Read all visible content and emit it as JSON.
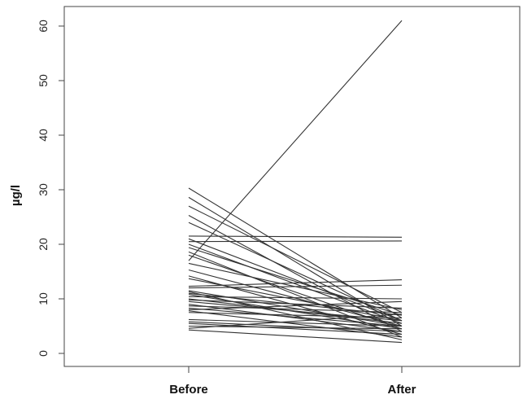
{
  "chart_data": {
    "type": "line",
    "title": "",
    "xlabel": "",
    "ylabel": "µg/l",
    "categories": [
      "Before",
      "After"
    ],
    "ylim": [
      0,
      62
    ],
    "yticks": [
      0,
      10,
      20,
      30,
      40,
      50,
      60
    ],
    "grid": false,
    "legend": "none",
    "line_color": "#333333",
    "series": [
      {
        "values": [
          17.0,
          61.0
        ]
      },
      {
        "values": [
          30.3,
          6.5
        ]
      },
      {
        "values": [
          28.6,
          5.0
        ]
      },
      {
        "values": [
          27.0,
          7.5
        ]
      },
      {
        "values": [
          25.3,
          4.0
        ]
      },
      {
        "values": [
          24.0,
          6.0
        ]
      },
      {
        "values": [
          21.5,
          21.3
        ]
      },
      {
        "values": [
          21.0,
          6.0
        ]
      },
      {
        "values": [
          20.5,
          20.6
        ]
      },
      {
        "values": [
          20.0,
          5.5
        ]
      },
      {
        "values": [
          19.4,
          7.0
        ]
      },
      {
        "values": [
          18.6,
          3.0
        ]
      },
      {
        "values": [
          18.0,
          4.5
        ]
      },
      {
        "values": [
          16.5,
          8.0
        ]
      },
      {
        "values": [
          15.3,
          5.0
        ]
      },
      {
        "values": [
          14.2,
          3.5
        ]
      },
      {
        "values": [
          13.7,
          6.0
        ]
      },
      {
        "values": [
          12.3,
          13.5
        ]
      },
      {
        "values": [
          12.0,
          12.5
        ]
      },
      {
        "values": [
          11.5,
          5.0
        ]
      },
      {
        "values": [
          11.3,
          2.5
        ]
      },
      {
        "values": [
          11.0,
          7.0
        ]
      },
      {
        "values": [
          10.8,
          4.5
        ]
      },
      {
        "values": [
          10.4,
          10.0
        ]
      },
      {
        "values": [
          10.0,
          5.5
        ]
      },
      {
        "values": [
          9.8,
          8.3
        ]
      },
      {
        "values": [
          9.5,
          6.0
        ]
      },
      {
        "values": [
          9.0,
          4.0
        ]
      },
      {
        "values": [
          8.7,
          7.5
        ]
      },
      {
        "values": [
          8.3,
          5.0
        ]
      },
      {
        "values": [
          8.0,
          9.5
        ]
      },
      {
        "values": [
          7.8,
          3.0
        ]
      },
      {
        "values": [
          7.5,
          6.5
        ]
      },
      {
        "values": [
          6.2,
          5.0
        ]
      },
      {
        "values": [
          5.8,
          4.0
        ]
      },
      {
        "values": [
          5.5,
          3.5
        ]
      },
      {
        "values": [
          5.0,
          4.5
        ]
      },
      {
        "values": [
          4.6,
          7.2
        ]
      },
      {
        "values": [
          4.3,
          2.0
        ]
      }
    ]
  }
}
